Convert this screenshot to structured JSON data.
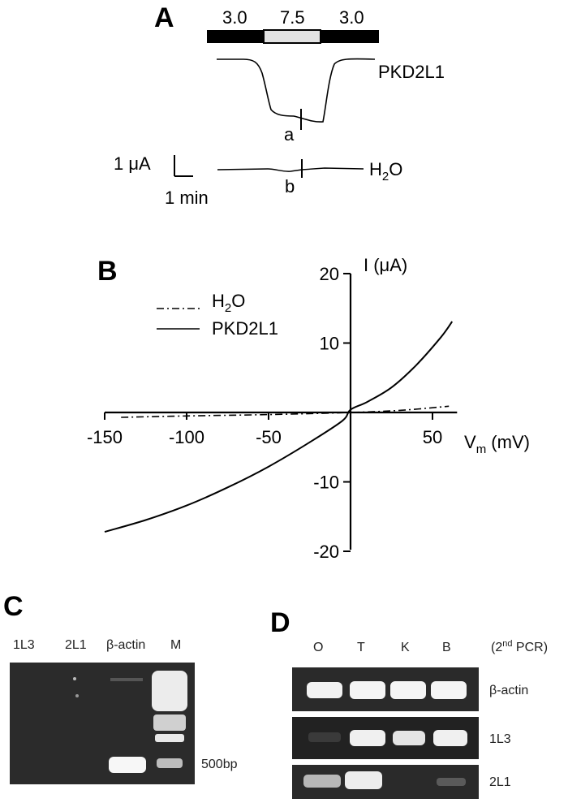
{
  "panel_a": {
    "label": "A",
    "bath_bar": [
      "3.0",
      "7.5",
      "3.0"
    ],
    "traces": [
      {
        "name": "PKD2L1",
        "marker": "a"
      },
      {
        "name": "H2O",
        "marker": "b"
      }
    ],
    "scale_current": "1 μA",
    "scale_time": "1 min"
  },
  "panel_b": {
    "label": "B"
  },
  "panel_c": {
    "label": "C",
    "lanes": [
      "1L3",
      "2L1",
      "β-actin",
      "M"
    ],
    "marker_size": "500bp"
  },
  "panel_d": {
    "label": "D",
    "lanes": [
      "O",
      "T",
      "K",
      "B"
    ],
    "note": "(2nd PCR)",
    "rows": [
      "β-actin",
      "1L3",
      "2L1"
    ]
  },
  "chart_data": {
    "type": "line",
    "title": "",
    "xlabel": "Vm (mV)",
    "ylabel": "I (μA)",
    "xlim": [
      -150,
      65
    ],
    "ylim": [
      -20,
      20
    ],
    "xticks": [
      "-150",
      "-100",
      "-50",
      "50"
    ],
    "yticks": [
      "20",
      "10",
      "-10",
      "-20"
    ],
    "grid": false,
    "legend_position": "top-left",
    "series": [
      {
        "name": "H2O",
        "style": "dash-dot",
        "x": [
          -140,
          -100,
          -50,
          0,
          30,
          60
        ],
        "y": [
          -0.7,
          -0.5,
          -0.3,
          0.0,
          0.3,
          0.9
        ]
      },
      {
        "name": "PKD2L1",
        "style": "solid",
        "x": [
          -150,
          -125,
          -100,
          -75,
          -50,
          -25,
          -5,
          0,
          10,
          25,
          40,
          55,
          62
        ],
        "y": [
          -17.2,
          -15.5,
          -13.4,
          -10.8,
          -7.8,
          -4.3,
          -1.2,
          0.4,
          1.5,
          3.6,
          6.8,
          10.8,
          13.1
        ]
      }
    ]
  }
}
